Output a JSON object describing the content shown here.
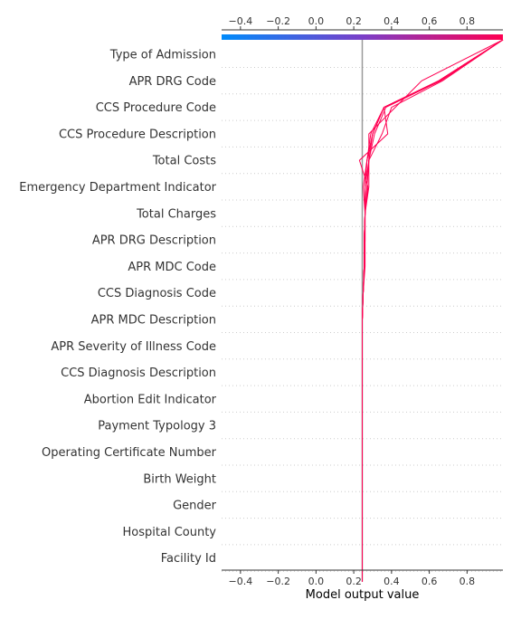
{
  "chart_data": {
    "type": "line",
    "subtype": "shap-decision-plot",
    "xlabel": "Model output value",
    "xlim": [
      -0.5,
      0.99
    ],
    "xticks": [
      -0.4,
      -0.2,
      0.0,
      0.2,
      0.4,
      0.6,
      0.8
    ],
    "tick_labels": [
      "−0.4",
      "−0.2",
      "0.0",
      "0.2",
      "0.4",
      "0.6",
      "0.8"
    ],
    "base_value": 0.245,
    "grid": "horizontal-dotted",
    "colormap": {
      "low": "#008bfb",
      "mid": "#7a3fc8",
      "high": "#ff0052"
    },
    "line_color": "#ff0052",
    "features": [
      "Type of Admission",
      "APR DRG Code",
      "CCS Procedure Code",
      "CCS Procedure Description",
      "Total Costs",
      "Emergency Department Indicator",
      "Total Charges",
      "APR DRG Description",
      "APR MDC Code",
      "CCS Diagnosis Code",
      "APR MDC Description",
      "APR Severity of Illness Code",
      "CCS Diagnosis Description",
      "Abortion Edit Indicator",
      "Payment Typology 3",
      "Operating Certificate Number",
      "Birth Weight",
      "Gender",
      "Hospital County",
      "Facility Id"
    ],
    "series": [
      {
        "values": [
          0.245,
          0.245,
          0.245,
          0.245,
          0.245,
          0.245,
          0.245,
          0.245,
          0.245,
          0.245,
          0.25,
          0.255,
          0.255,
          0.26,
          0.26,
          0.27,
          0.3,
          0.36,
          0.65,
          0.99
        ]
      },
      {
        "values": [
          0.245,
          0.245,
          0.245,
          0.245,
          0.245,
          0.245,
          0.245,
          0.245,
          0.245,
          0.245,
          0.25,
          0.255,
          0.255,
          0.26,
          0.27,
          0.28,
          0.28,
          0.42,
          0.56,
          0.99
        ]
      },
      {
        "values": [
          0.245,
          0.245,
          0.245,
          0.245,
          0.245,
          0.245,
          0.245,
          0.245,
          0.245,
          0.245,
          0.25,
          0.255,
          0.255,
          0.26,
          0.275,
          0.23,
          0.38,
          0.36,
          0.66,
          0.99
        ]
      },
      {
        "values": [
          0.245,
          0.245,
          0.245,
          0.245,
          0.245,
          0.245,
          0.245,
          0.245,
          0.245,
          0.245,
          0.25,
          0.255,
          0.26,
          0.26,
          0.27,
          0.28,
          0.35,
          0.4,
          0.67,
          0.99
        ]
      },
      {
        "values": [
          0.245,
          0.245,
          0.245,
          0.245,
          0.245,
          0.245,
          0.245,
          0.245,
          0.245,
          0.245,
          0.25,
          0.255,
          0.255,
          0.26,
          0.26,
          0.27,
          0.29,
          0.36,
          0.65,
          0.99
        ]
      },
      {
        "values": [
          0.245,
          0.245,
          0.245,
          0.245,
          0.245,
          0.245,
          0.245,
          0.245,
          0.245,
          0.245,
          0.25,
          0.26,
          0.26,
          0.26,
          0.25,
          0.27,
          0.3,
          0.36,
          0.65,
          0.99
        ]
      },
      {
        "values": [
          0.245,
          0.245,
          0.245,
          0.245,
          0.245,
          0.245,
          0.245,
          0.245,
          0.245,
          0.245,
          0.25,
          0.255,
          0.255,
          0.26,
          0.28,
          0.28,
          0.3,
          0.36,
          0.65,
          0.99
        ]
      },
      {
        "values": [
          0.245,
          0.245,
          0.245,
          0.245,
          0.245,
          0.245,
          0.245,
          0.245,
          0.245,
          0.245,
          0.25,
          0.255,
          0.255,
          0.26,
          0.26,
          0.28,
          0.31,
          0.37,
          0.66,
          0.99
        ]
      }
    ]
  }
}
